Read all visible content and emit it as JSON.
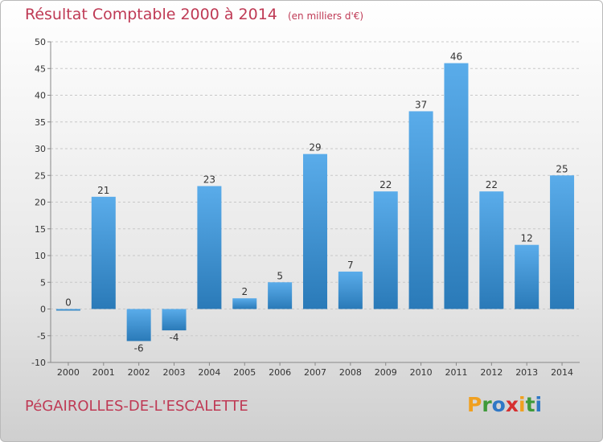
{
  "chart_data": {
    "type": "bar",
    "title": "Résultat Comptable 2000 à 2014",
    "unit_note": "(en milliers d'€)",
    "categories": [
      "2000",
      "2001",
      "2002",
      "2003",
      "2004",
      "2005",
      "2006",
      "2007",
      "2008",
      "2009",
      "2010",
      "2011",
      "2012",
      "2013",
      "2014"
    ],
    "values": [
      0,
      21,
      -6,
      -4,
      23,
      2,
      5,
      29,
      7,
      22,
      37,
      46,
      22,
      12,
      25
    ],
    "ylim": [
      -10,
      50
    ],
    "yticks": [
      -10,
      -5,
      0,
      5,
      10,
      15,
      20,
      25,
      30,
      35,
      40,
      45,
      50
    ],
    "grid": true,
    "bar_color_light": "#5aacea",
    "bar_color_dark": "#2a7ab8"
  },
  "footer": {
    "place": "PéGAIROLLES-DE-L'ESCALETTE"
  },
  "logo": {
    "letters": [
      {
        "ch": "P",
        "color": "#f0a020"
      },
      {
        "ch": "r",
        "color": "#3f9a3a"
      },
      {
        "ch": "o",
        "color": "#2f77c5"
      },
      {
        "ch": "x",
        "color": "#d62f2f"
      },
      {
        "ch": "i",
        "color": "#f0a020"
      },
      {
        "ch": "t",
        "color": "#3f9a3a"
      },
      {
        "ch": "i",
        "color": "#2f77c5"
      }
    ]
  }
}
